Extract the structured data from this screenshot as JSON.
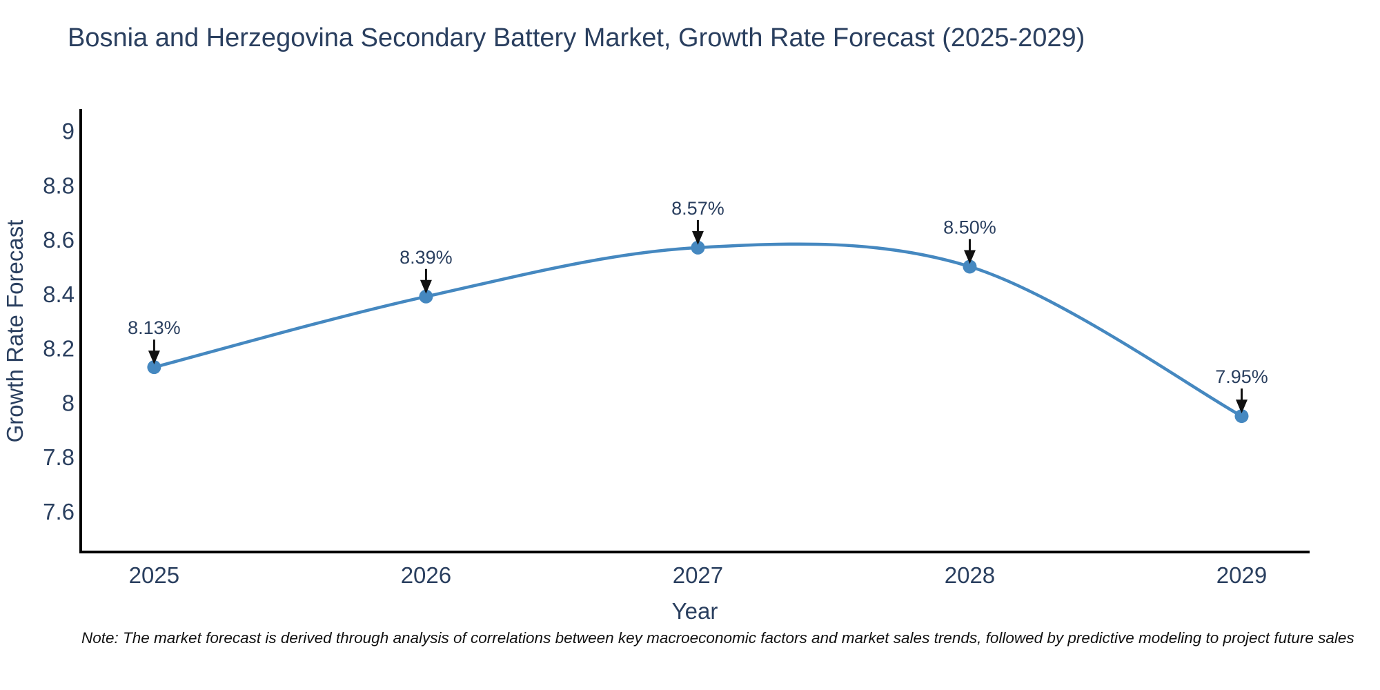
{
  "note": "Note: The market forecast is derived through analysis of correlations between key macroeconomic factors and market sales trends, followed by predictive modeling to project future sales",
  "colors": {
    "line": "#4588c0",
    "marker": "#4588c0",
    "axis": "#000000",
    "text": "#2a3f5f",
    "annotation_text": "#2a3f5f",
    "arrow": "#111111",
    "note_text": "#111111",
    "background": "#ffffff"
  },
  "chart_data": {
    "type": "line",
    "title": "Bosnia and Herzegovina Secondary Battery Market, Growth Rate Forecast (2025-2029)",
    "xlabel": "Year",
    "ylabel": "Growth Rate Forecast",
    "x": [
      2025,
      2026,
      2027,
      2028,
      2029
    ],
    "values": [
      8.13,
      8.39,
      8.57,
      8.5,
      7.95
    ],
    "labels": [
      "8.13%",
      "8.39%",
      "8.57%",
      "8.50%",
      "7.95%"
    ],
    "yticks": [
      7.6,
      7.8,
      8,
      8.2,
      8.4,
      8.6,
      8.8,
      9
    ],
    "xlim": [
      2024.73,
      2029.25
    ],
    "ylim": [
      7.45,
      9.08
    ],
    "grid": false,
    "legend": false,
    "line_shape": "spline",
    "marker_symbol": "circle",
    "annotation_arrows": true
  }
}
